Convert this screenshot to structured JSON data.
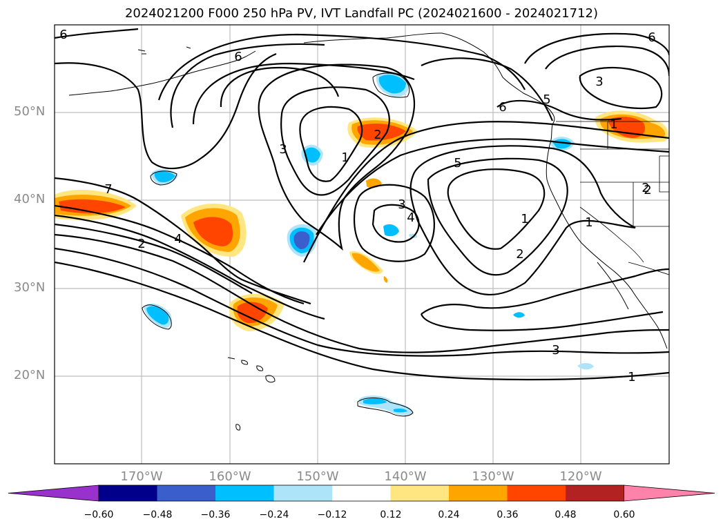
{
  "title": "2024021200 F000 250 hPa PV, IVT Landfall PC (2024021600 - 2024021712)",
  "map": {
    "type": "contour-map",
    "projection": "PlateCarree",
    "lon_range": [
      -180,
      -110
    ],
    "lat_range": [
      10,
      60
    ],
    "grid": true,
    "lat_labels": [
      "50°N",
      "40°N",
      "30°N",
      "20°N"
    ],
    "lon_labels": [
      "170°W",
      "160°W",
      "150°W",
      "140°W",
      "130°W",
      "120°W"
    ],
    "contour_labels": [
      "6",
      "6",
      "6",
      "6",
      "5",
      "3",
      "3",
      "3",
      "2",
      "1",
      "7",
      "4",
      "2",
      "4",
      "5",
      "1",
      "2",
      "1",
      "2",
      "3",
      "1",
      "1",
      "2"
    ],
    "filled_shading": "IVT landfall principal-component regression",
    "line_contours": "250 hPa PV"
  },
  "colorbar": {
    "ticks": [
      "−0.60",
      "−0.48",
      "−0.36",
      "−0.24",
      "−0.12",
      "0.12",
      "0.24",
      "0.36",
      "0.48",
      "0.60"
    ],
    "colors": [
      "#9932cc",
      "#00008b",
      "#3a5fcd",
      "#00bfff",
      "#aee4fa",
      "#ffffff",
      "#ffe680",
      "#ffa500",
      "#ff4500",
      "#b22222",
      "#ff82ab"
    ]
  }
}
